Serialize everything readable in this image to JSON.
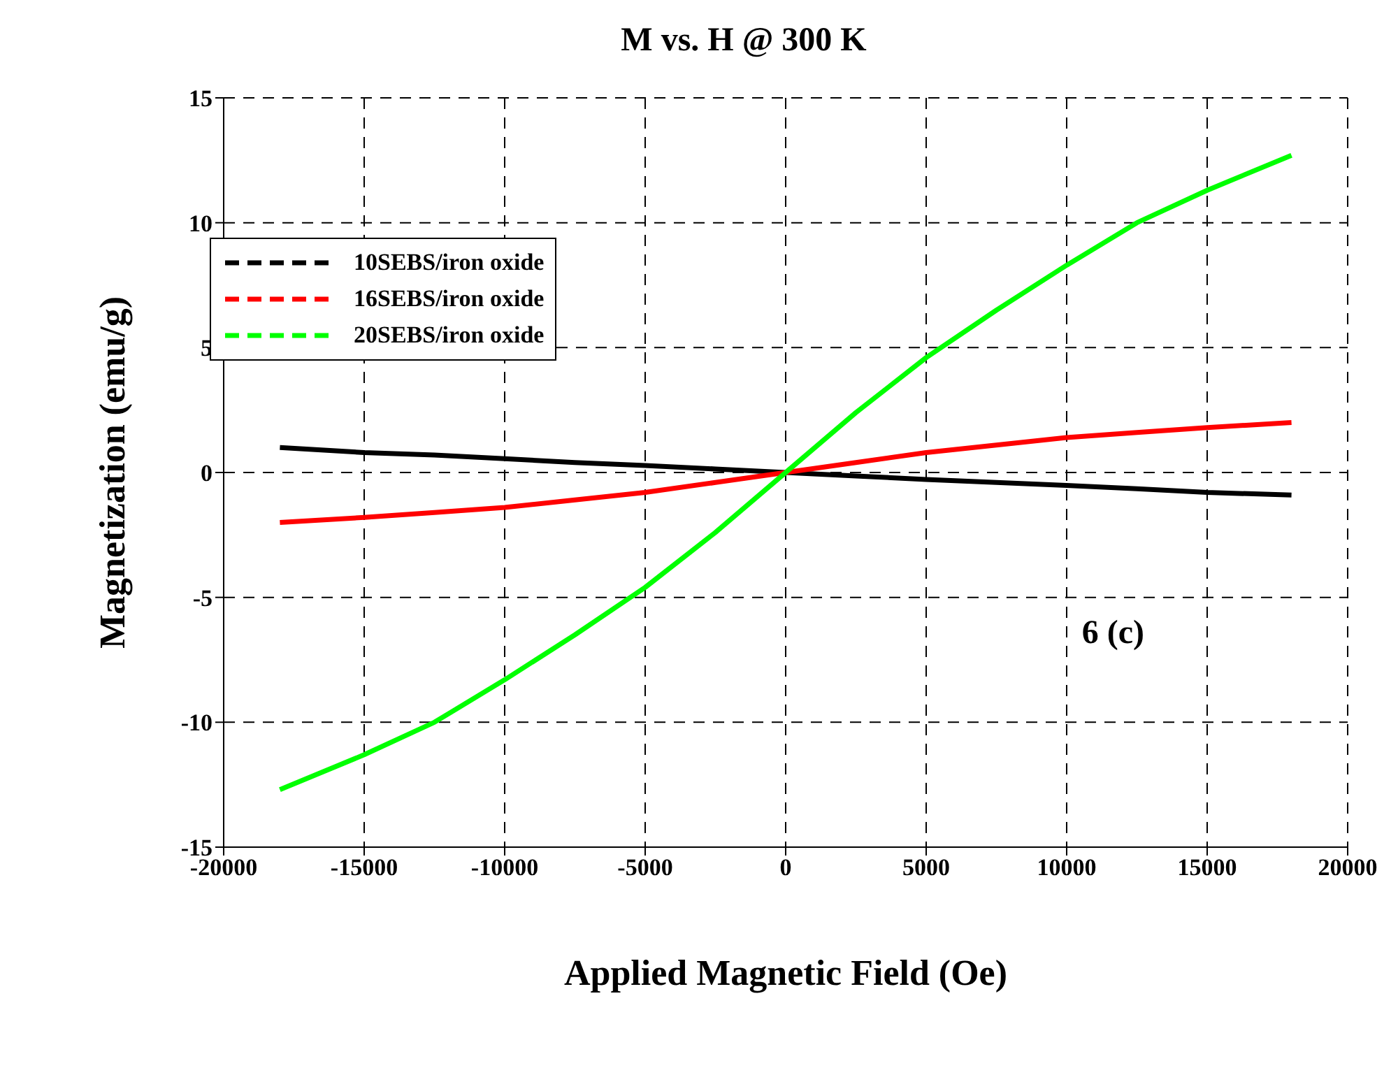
{
  "chart_data": {
    "type": "line",
    "title": "M vs. H @ 300 K",
    "xlabel": "Applied Magnetic Field (Oe)",
    "ylabel": "Magnetization (emu/g)",
    "x": [
      -18000,
      -15000,
      -12500,
      -10000,
      -7500,
      -5000,
      -2500,
      0,
      2500,
      5000,
      7500,
      10000,
      12500,
      15000,
      18000
    ],
    "series": [
      {
        "name": "10SEBS/iron oxide",
        "color": "#000000",
        "values": [
          1.0,
          0.8,
          0.7,
          0.55,
          0.4,
          0.28,
          0.14,
          0,
          -0.14,
          -0.28,
          -0.4,
          -0.52,
          -0.65,
          -0.8,
          -0.9
        ]
      },
      {
        "name": "16SEBS/iron oxide",
        "color": "#ff0000",
        "values": [
          -2.0,
          -1.8,
          -1.6,
          -1.4,
          -1.1,
          -0.8,
          -0.4,
          0,
          0.4,
          0.8,
          1.1,
          1.4,
          1.6,
          1.8,
          2.0
        ]
      },
      {
        "name": "20SEBS/iron oxide",
        "color": "#00ff00",
        "values": [
          -12.7,
          -11.3,
          -10.0,
          -8.3,
          -6.5,
          -4.6,
          -2.4,
          0,
          2.4,
          4.6,
          6.5,
          8.3,
          10.0,
          11.3,
          12.7
        ]
      }
    ],
    "xlim": [
      -20000,
      20000
    ],
    "xticks": [
      -20000,
      -15000,
      -10000,
      -5000,
      0,
      5000,
      10000,
      15000,
      20000
    ],
    "ylim": [
      -15,
      15
    ],
    "yticks": [
      -15,
      -10,
      -5,
      0,
      5,
      10,
      15
    ],
    "grid": true,
    "legend": "top left",
    "marker": "none",
    "line_style": "solid",
    "annotations": [
      "6 (c)"
    ]
  }
}
